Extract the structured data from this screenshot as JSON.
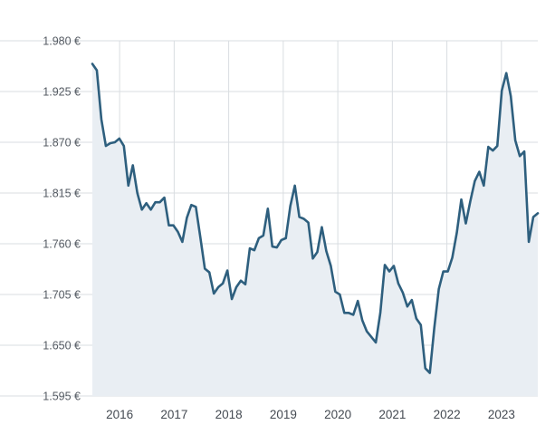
{
  "chart_data": {
    "type": "area",
    "title": "",
    "xlabel": "",
    "ylabel": "",
    "grid": true,
    "x_start": "2015-07",
    "x_end": "2023-09",
    "ylim": [
      1595,
      1980
    ],
    "y_ticks": [
      1980,
      1925,
      1870,
      1815,
      1760,
      1705,
      1650,
      1595
    ],
    "y_tick_labels": [
      "1.980 €",
      "1.925 €",
      "1.870 €",
      "1.815 €",
      "1.760 €",
      "1.705 €",
      "1.650 €",
      "1.595 €"
    ],
    "x_ticks": [
      "2016",
      "2017",
      "2018",
      "2019",
      "2020",
      "2021",
      "2022",
      "2023"
    ],
    "x_tick_labels": [
      "2016",
      "2017",
      "2018",
      "2019",
      "2020",
      "2021",
      "2022",
      "2023"
    ],
    "colors": {
      "line": "#2e5f7e",
      "area": "#e9eef3",
      "grid": "#d9dde1",
      "tick_text": "#555b63"
    },
    "series": [
      {
        "values": [
          1955,
          1948,
          1895,
          1866,
          1869,
          1870,
          1874,
          1866,
          1823,
          1845,
          1815,
          1797,
          1804,
          1797,
          1805,
          1805,
          1810,
          1780,
          1780,
          1773,
          1762,
          1788,
          1802,
          1800,
          1767,
          1733,
          1729,
          1706,
          1713,
          1717,
          1731,
          1700,
          1713,
          1720,
          1716,
          1755,
          1753,
          1766,
          1769,
          1798,
          1757,
          1756,
          1764,
          1766,
          1801,
          1823,
          1789,
          1787,
          1783,
          1744,
          1751,
          1778,
          1752,
          1736,
          1708,
          1705,
          1685,
          1685,
          1683,
          1698,
          1677,
          1665,
          1659,
          1653,
          1685,
          1737,
          1730,
          1736,
          1717,
          1707,
          1692,
          1699,
          1679,
          1672,
          1625,
          1620,
          1669,
          1711,
          1730,
          1730,
          1745,
          1772,
          1808,
          1782,
          1806,
          1828,
          1838,
          1823,
          1865,
          1861,
          1866,
          1926,
          1945,
          1920,
          1872,
          1855,
          1860,
          1762,
          1789,
          1793
        ]
      }
    ]
  }
}
